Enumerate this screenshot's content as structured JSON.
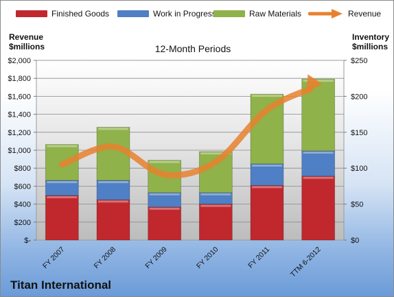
{
  "chart_data": {
    "type": "bar",
    "title": "12-Month Periods",
    "company": "Titan International",
    "ylabel_left": [
      "Revenue",
      "$millions"
    ],
    "ylabel_right": [
      "Inventory",
      "$millions"
    ],
    "categories": [
      "FY 2007",
      "FY 2008",
      "FY 2009",
      "FY 2010",
      "FY 2011",
      "TTM 6-2012"
    ],
    "stacked": true,
    "series": [
      {
        "name": "Finished Goods",
        "axis": "right",
        "color": "#c0282e",
        "values": [
          62,
          56,
          46,
          50,
          76,
          89
        ]
      },
      {
        "name": "Work in Progress",
        "axis": "right",
        "color": "#4f7fc4",
        "values": [
          21,
          27,
          20,
          16,
          30,
          35
        ]
      },
      {
        "name": "Raw Materials",
        "axis": "right",
        "color": "#8fb24a",
        "values": [
          50,
          74,
          45,
          57,
          97,
          100
        ]
      },
      {
        "name": "Revenue",
        "axis": "left",
        "type": "line",
        "color": "#e8812f",
        "values": [
          840,
          1040,
          730,
          870,
          1450,
          1720
        ]
      }
    ],
    "ylim_left": [
      0,
      2000
    ],
    "ylim_right": [
      0,
      250
    ],
    "yticks_left": [
      "$-",
      "$200",
      "$400",
      "$600",
      "$800",
      "$1,000",
      "$1,200",
      "$1,400",
      "$1,600",
      "$1,800",
      "$2,000"
    ],
    "yticks_right": [
      "$0",
      "$50",
      "$100",
      "$150",
      "$200",
      "$250"
    ],
    "legend_position": "top"
  }
}
